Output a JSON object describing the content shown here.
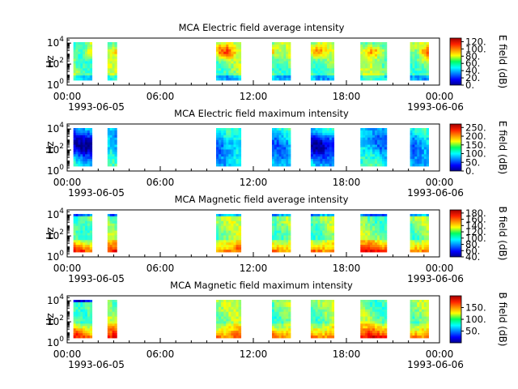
{
  "chart_data": [
    {
      "type": "heatmap",
      "title": "MCA  Electric field average intensity",
      "ylabel": "Hz",
      "x_ticks": [
        "00:00",
        "06:00",
        "12:00",
        "18:00",
        "00:00"
      ],
      "x_range_hours": [
        0,
        24
      ],
      "x_start_label": "1993-06-05",
      "x_end_label": "1993-06-06",
      "y_scale": "log",
      "y_ticks": [
        {
          "base": "10",
          "exp": "0"
        },
        {
          "base": "10",
          "exp": "2"
        },
        {
          "base": "10",
          "exp": "4"
        }
      ],
      "y_range_hz": [
        1,
        30000
      ],
      "colorbar": {
        "label": "E field (dB)",
        "range": [
          0,
          130
        ],
        "ticks": [
          "0.",
          "20.",
          "40.",
          "60.",
          "80.",
          "100.",
          "120."
        ]
      },
      "data_intervals_hours": [
        [
          0.4,
          1.6
        ],
        [
          2.6,
          3.2
        ],
        [
          9.6,
          11.2
        ],
        [
          13.2,
          14.4
        ],
        [
          15.7,
          17.2
        ],
        [
          18.9,
          20.6
        ],
        [
          22.1,
          23.3
        ]
      ]
    },
    {
      "type": "heatmap",
      "title": "MCA  Electric field maximum intensity",
      "ylabel": "Hz",
      "x_ticks": [
        "00:00",
        "06:00",
        "12:00",
        "18:00",
        "00:00"
      ],
      "x_range_hours": [
        0,
        24
      ],
      "x_start_label": "1993-06-05",
      "x_end_label": "1993-06-06",
      "y_scale": "log",
      "y_ticks": [
        {
          "base": "10",
          "exp": "0"
        },
        {
          "base": "10",
          "exp": "2"
        },
        {
          "base": "10",
          "exp": "4"
        }
      ],
      "y_range_hz": [
        1,
        30000
      ],
      "colorbar": {
        "label": "E field (dB)",
        "range": [
          0,
          270
        ],
        "ticks": [
          "0.",
          "50.",
          "100.",
          "150.",
          "200.",
          "250."
        ]
      },
      "data_intervals_hours": [
        [
          0.4,
          1.6
        ],
        [
          2.6,
          3.2
        ],
        [
          9.6,
          11.2
        ],
        [
          13.2,
          14.4
        ],
        [
          15.7,
          17.2
        ],
        [
          18.9,
          20.6
        ],
        [
          22.1,
          23.3
        ]
      ]
    },
    {
      "type": "heatmap",
      "title": "MCA  Magnetic field average intensity",
      "ylabel": "Hz",
      "x_ticks": [
        "00:00",
        "06:00",
        "12:00",
        "18:00",
        "00:00"
      ],
      "x_range_hours": [
        0,
        24
      ],
      "x_start_label": "1993-06-05",
      "x_end_label": "1993-06-06",
      "y_scale": "log",
      "y_ticks": [
        {
          "base": "10",
          "exp": "0"
        },
        {
          "base": "10",
          "exp": "2"
        },
        {
          "base": "10",
          "exp": "4"
        }
      ],
      "y_range_hz": [
        1,
        30000
      ],
      "colorbar": {
        "label": "B field (dB)",
        "range": [
          40,
          190
        ],
        "ticks": [
          "40.",
          "60.",
          "80.",
          "100.",
          "120.",
          "140.",
          "160.",
          "180."
        ]
      },
      "data_intervals_hours": [
        [
          0.4,
          1.6
        ],
        [
          2.6,
          3.2
        ],
        [
          9.6,
          11.2
        ],
        [
          13.2,
          14.4
        ],
        [
          15.7,
          17.2
        ],
        [
          18.9,
          20.6
        ],
        [
          22.1,
          23.3
        ]
      ]
    },
    {
      "type": "heatmap",
      "title": "MCA  Magnetic field maximum intensity",
      "ylabel": "Hz",
      "x_ticks": [
        "00:00",
        "06:00",
        "12:00",
        "18:00",
        "00:00"
      ],
      "x_range_hours": [
        0,
        24
      ],
      "x_start_label": "1993-06-05",
      "x_end_label": "1993-06-06",
      "y_scale": "log",
      "y_ticks": [
        {
          "base": "10",
          "exp": "0"
        },
        {
          "base": "10",
          "exp": "2"
        },
        {
          "base": "10",
          "exp": "4"
        }
      ],
      "y_range_hz": [
        1,
        30000
      ],
      "colorbar": {
        "label": "B field (dB)",
        "range": [
          0,
          200
        ],
        "ticks": [
          "50.",
          "100.",
          "150."
        ]
      },
      "data_intervals_hours": [
        [
          0.4,
          1.6
        ],
        [
          2.6,
          3.2
        ],
        [
          9.6,
          11.2
        ],
        [
          13.2,
          14.4
        ],
        [
          15.7,
          17.2
        ],
        [
          18.9,
          20.6
        ],
        [
          22.1,
          23.3
        ]
      ]
    }
  ]
}
